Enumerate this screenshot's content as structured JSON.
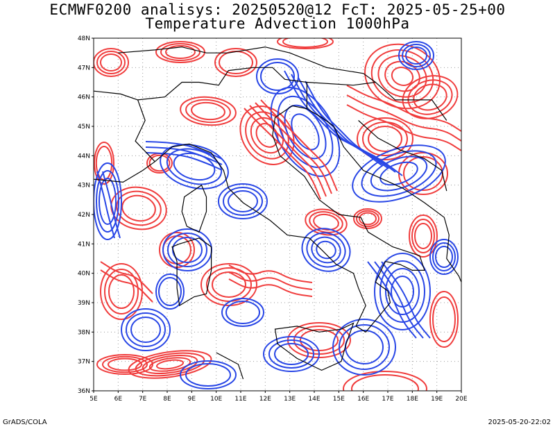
{
  "title": {
    "line1": "ECMWF0200 analisys: 20250520@12 FcT: 2025-05-25+00",
    "line2": "Temperature Advection 1000hPa"
  },
  "footer": {
    "left": "GrADS/COLA",
    "right": "2025-05-20-22:02"
  },
  "map": {
    "lon_range": [
      5,
      20
    ],
    "lat_range": [
      36,
      48
    ],
    "lon_labels": [
      "5E",
      "6E",
      "7E",
      "8E",
      "9E",
      "10E",
      "11E",
      "12E",
      "13E",
      "14E",
      "15E",
      "16E",
      "17E",
      "18E",
      "19E",
      "20E"
    ],
    "lat_labels": [
      "36N",
      "37N",
      "38N",
      "39N",
      "40N",
      "41N",
      "42N",
      "43N",
      "44N",
      "45N",
      "46N",
      "47N",
      "48N"
    ],
    "colors": {
      "warm_advection": "#f03c3c",
      "cold_advection": "#2846e6",
      "coastline": "#000000",
      "grid": "#999999"
    }
  }
}
